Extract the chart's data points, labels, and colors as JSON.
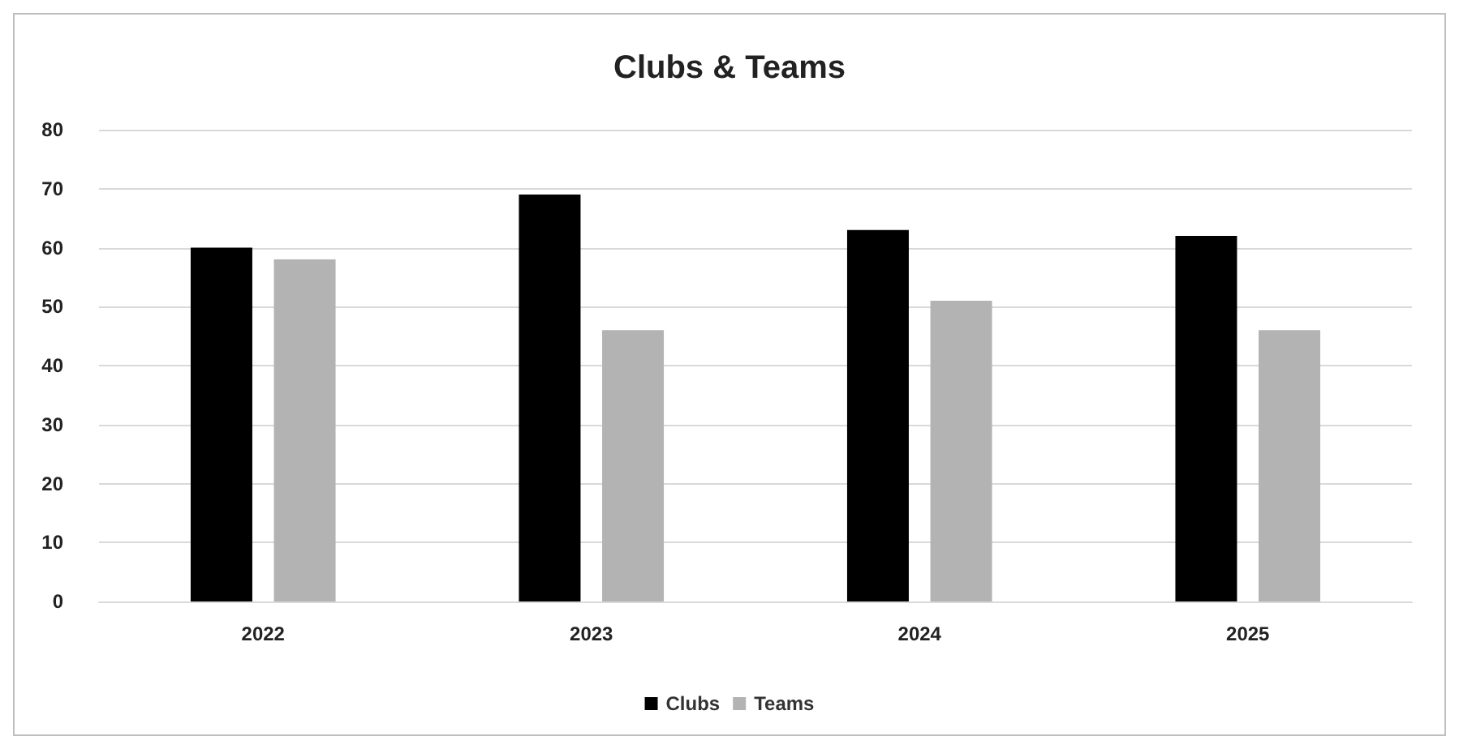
{
  "chart_data": {
    "type": "bar",
    "title": "Clubs & Teams",
    "categories": [
      "2022",
      "2023",
      "2024",
      "2025"
    ],
    "series": [
      {
        "name": "Clubs",
        "color": "#000000",
        "values": [
          60,
          69,
          63,
          62
        ]
      },
      {
        "name": "Teams",
        "color": "#b3b3b3",
        "values": [
          58,
          46,
          51,
          46
        ]
      }
    ],
    "ylim": [
      0,
      80
    ],
    "yticks": [
      0,
      10,
      20,
      30,
      40,
      50,
      60,
      70,
      80
    ],
    "grid": "y",
    "legend": "bottom"
  }
}
